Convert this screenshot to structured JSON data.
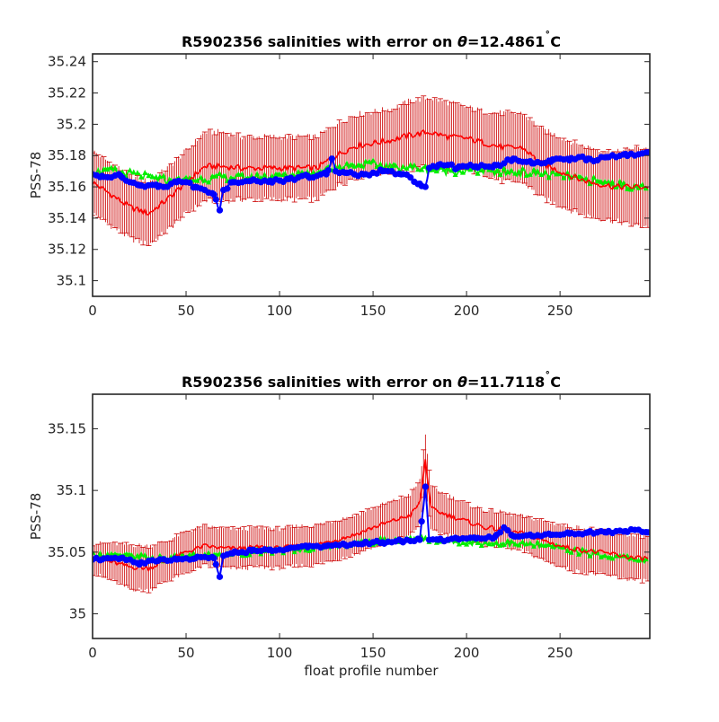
{
  "chart_data": [
    {
      "type": "line",
      "title": "R5902356 salinities with error on θ=12.4861˚C",
      "title_parts": {
        "prefix": "R5902356 salinities with error on ",
        "theta": "θ",
        "value": "=12.4861",
        "degree": "˚",
        "unit": "C"
      },
      "xlabel": "",
      "ylabel": "PSS-78",
      "xlim": [
        0,
        298
      ],
      "ylim": [
        35.09,
        35.245
      ],
      "xticks": [
        0,
        50,
        100,
        150,
        200,
        250
      ],
      "yticks": [
        35.1,
        35.12,
        35.14,
        35.16,
        35.18,
        35.2,
        35.22,
        35.24
      ],
      "ytick_labels": [
        "35.1",
        "35.12",
        "35.14",
        "35.16",
        "35.18",
        "35.2",
        "35.22",
        "35.24"
      ],
      "grid": false,
      "legend": "none",
      "series": [
        {
          "role": "mapped",
          "color": "#ff0000",
          "error_color": "#cc0000",
          "x": [
            0,
            10,
            20,
            30,
            40,
            50,
            60,
            70,
            80,
            90,
            100,
            110,
            120,
            130,
            140,
            150,
            160,
            170,
            180,
            190,
            200,
            210,
            220,
            230,
            240,
            250,
            260,
            270,
            280,
            290,
            297
          ],
          "y": [
            35.163,
            35.155,
            35.147,
            35.143,
            35.152,
            35.163,
            35.173,
            35.173,
            35.172,
            35.172,
            35.172,
            35.172,
            35.172,
            35.18,
            35.186,
            35.188,
            35.19,
            35.193,
            35.195,
            35.192,
            35.191,
            35.188,
            35.185,
            35.185,
            35.175,
            35.17,
            35.165,
            35.162,
            35.16,
            35.16,
            35.16
          ],
          "err": [
            0.02,
            0.02,
            0.02,
            0.02,
            0.02,
            0.02,
            0.022,
            0.022,
            0.02,
            0.02,
            0.02,
            0.02,
            0.02,
            0.02,
            0.02,
            0.02,
            0.02,
            0.022,
            0.022,
            0.022,
            0.02,
            0.02,
            0.022,
            0.022,
            0.022,
            0.022,
            0.022,
            0.022,
            0.022,
            0.025,
            0.025
          ]
        },
        {
          "role": "original",
          "color": "#00ee00",
          "x": [
            0,
            10,
            20,
            30,
            40,
            50,
            60,
            70,
            80,
            90,
            100,
            110,
            120,
            130,
            140,
            150,
            160,
            170,
            180,
            190,
            200,
            210,
            220,
            230,
            240,
            250,
            260,
            270,
            280,
            290,
            297
          ],
          "y": [
            35.17,
            35.17,
            35.168,
            35.166,
            35.164,
            35.164,
            35.165,
            35.166,
            35.166,
            35.166,
            35.167,
            35.168,
            35.17,
            35.172,
            35.174,
            35.174,
            35.173,
            35.172,
            35.171,
            35.17,
            35.17,
            35.17,
            35.169,
            35.169,
            35.168,
            35.167,
            35.165,
            35.163,
            35.161,
            35.16,
            35.158
          ]
        },
        {
          "role": "calibrated",
          "color": "#0000ff",
          "x": [
            0,
            5,
            10,
            15,
            20,
            25,
            30,
            35,
            40,
            45,
            50,
            55,
            60,
            65,
            68,
            70,
            75,
            80,
            85,
            90,
            95,
            100,
            105,
            110,
            115,
            120,
            125,
            128,
            130,
            135,
            140,
            145,
            150,
            155,
            160,
            165,
            170,
            175,
            178,
            180,
            185,
            190,
            195,
            200,
            205,
            210,
            215,
            220,
            225,
            230,
            235,
            240,
            245,
            250,
            255,
            260,
            265,
            270,
            275,
            280,
            285,
            290,
            297
          ],
          "y": [
            35.168,
            35.167,
            35.166,
            35.167,
            35.163,
            35.161,
            35.161,
            35.16,
            35.16,
            35.163,
            35.163,
            35.16,
            35.158,
            35.155,
            35.145,
            35.158,
            35.163,
            35.163,
            35.164,
            35.163,
            35.164,
            35.164,
            35.165,
            35.166,
            35.167,
            35.167,
            35.168,
            35.178,
            35.17,
            35.169,
            35.168,
            35.168,
            35.169,
            35.17,
            35.17,
            35.168,
            35.166,
            35.162,
            35.16,
            35.172,
            35.174,
            35.174,
            35.172,
            35.173,
            35.173,
            35.173,
            35.174,
            35.175,
            35.178,
            35.176,
            35.175,
            35.175,
            35.176,
            35.178,
            35.177,
            35.179,
            35.178,
            35.177,
            35.179,
            35.179,
            35.181,
            35.18,
            35.182
          ]
        }
      ]
    },
    {
      "type": "line",
      "title": "R5902356 salinities with error on θ=11.7118˚C",
      "title_parts": {
        "prefix": "R5902356 salinities with error on ",
        "theta": "θ",
        "value": "=11.7118",
        "degree": "˚",
        "unit": "C"
      },
      "xlabel": "float profile number",
      "ylabel": "PSS-78",
      "xlim": [
        0,
        298
      ],
      "ylim": [
        34.98,
        35.178
      ],
      "xticks": [
        0,
        50,
        100,
        150,
        200,
        250
      ],
      "yticks": [
        35.0,
        35.05,
        35.1,
        35.15
      ],
      "ytick_labels": [
        "35",
        "35.05",
        "35.1",
        "35.15"
      ],
      "grid": false,
      "legend": "none",
      "series": [
        {
          "role": "mapped",
          "color": "#ff0000",
          "error_color": "#cc0000",
          "x": [
            0,
            10,
            20,
            30,
            40,
            50,
            60,
            70,
            80,
            90,
            100,
            110,
            120,
            130,
            140,
            150,
            160,
            170,
            175,
            178,
            181,
            190,
            200,
            210,
            220,
            230,
            240,
            250,
            260,
            270,
            280,
            290,
            297
          ],
          "y": [
            35.045,
            35.042,
            35.038,
            35.037,
            35.043,
            35.05,
            35.055,
            35.053,
            35.053,
            35.054,
            35.053,
            35.055,
            35.056,
            35.06,
            35.064,
            35.07,
            35.075,
            35.08,
            35.09,
            35.125,
            35.085,
            35.08,
            35.075,
            35.07,
            35.068,
            35.065,
            35.06,
            35.055,
            35.052,
            35.05,
            35.048,
            35.045,
            35.045
          ],
          "err": [
            0.012,
            0.015,
            0.018,
            0.018,
            0.016,
            0.017,
            0.016,
            0.016,
            0.016,
            0.016,
            0.016,
            0.016,
            0.016,
            0.016,
            0.016,
            0.016,
            0.016,
            0.017,
            0.018,
            0.02,
            0.018,
            0.016,
            0.014,
            0.014,
            0.014,
            0.014,
            0.016,
            0.017,
            0.018,
            0.018,
            0.018,
            0.018,
            0.018
          ]
        },
        {
          "role": "original",
          "color": "#00ee00",
          "x": [
            0,
            10,
            20,
            30,
            40,
            50,
            60,
            70,
            80,
            90,
            100,
            110,
            120,
            130,
            140,
            150,
            160,
            170,
            180,
            190,
            200,
            210,
            220,
            230,
            240,
            250,
            260,
            270,
            280,
            290,
            297
          ],
          "y": [
            35.047,
            35.047,
            35.047,
            35.045,
            35.044,
            35.046,
            35.047,
            35.048,
            35.049,
            35.05,
            35.051,
            35.052,
            35.053,
            35.055,
            35.057,
            35.058,
            35.059,
            35.06,
            35.06,
            35.059,
            35.058,
            35.057,
            35.057,
            35.056,
            35.055,
            35.053,
            35.05,
            35.048,
            35.046,
            35.044,
            35.043
          ]
        },
        {
          "role": "calibrated",
          "color": "#0000ff",
          "x": [
            0,
            5,
            10,
            15,
            20,
            25,
            30,
            35,
            40,
            45,
            50,
            55,
            60,
            65,
            68,
            70,
            75,
            80,
            85,
            90,
            95,
            100,
            105,
            110,
            115,
            120,
            125,
            130,
            135,
            140,
            145,
            150,
            155,
            160,
            165,
            170,
            175,
            178,
            180,
            185,
            190,
            195,
            200,
            205,
            210,
            215,
            220,
            225,
            230,
            235,
            240,
            245,
            250,
            255,
            260,
            265,
            270,
            275,
            280,
            285,
            290,
            297
          ],
          "y": [
            35.044,
            35.044,
            35.045,
            35.045,
            35.044,
            35.04,
            35.043,
            35.043,
            35.043,
            35.044,
            35.045,
            35.045,
            35.046,
            35.045,
            35.03,
            35.047,
            35.049,
            35.05,
            35.051,
            35.051,
            35.052,
            35.052,
            35.053,
            35.054,
            35.054,
            35.055,
            35.055,
            35.056,
            35.056,
            35.057,
            35.057,
            35.058,
            35.058,
            35.058,
            35.059,
            35.059,
            35.06,
            35.103,
            35.06,
            35.06,
            35.06,
            35.061,
            35.061,
            35.061,
            35.061,
            35.062,
            35.07,
            35.063,
            35.063,
            35.063,
            35.063,
            35.064,
            35.064,
            35.065,
            35.065,
            35.066,
            35.066,
            35.066,
            35.067,
            35.067,
            35.068,
            35.066
          ]
        }
      ]
    }
  ]
}
